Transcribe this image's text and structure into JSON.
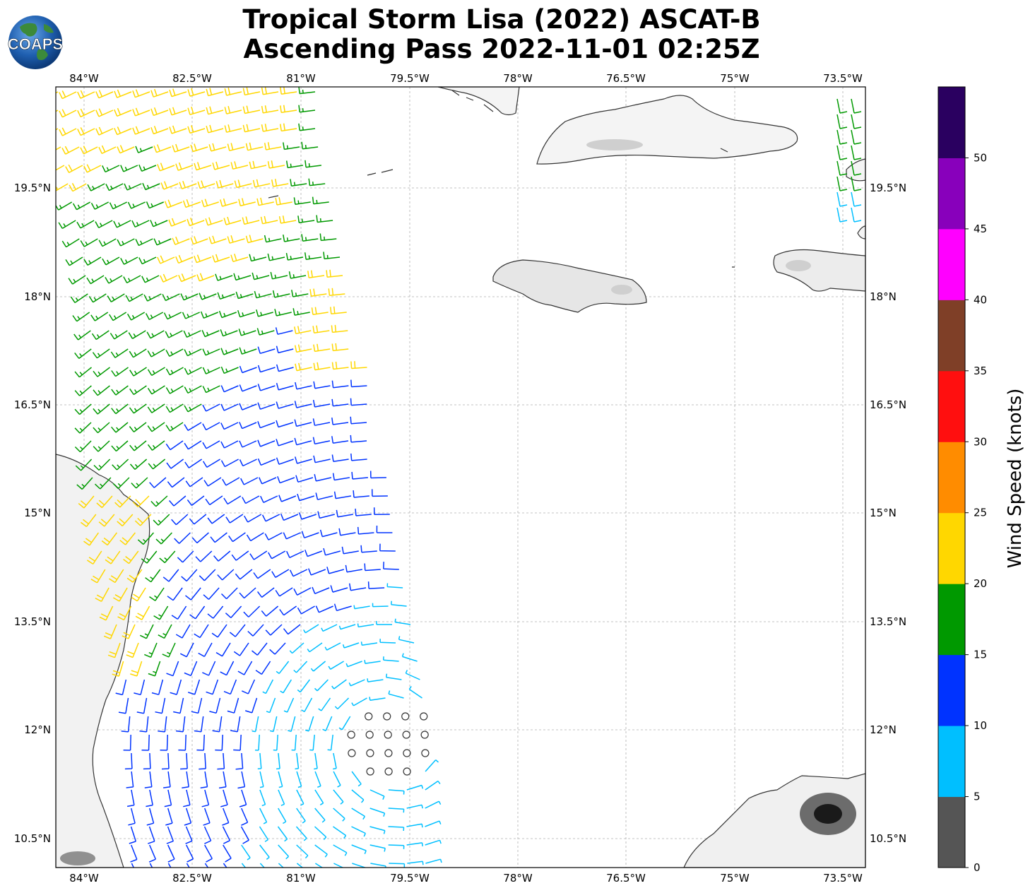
{
  "title_line1": "Tropical Storm Lisa (2022) ASCAT-B",
  "title_line2": "Ascending Pass 2022-11-01 02:25Z",
  "logo_text": "COAPS",
  "lon_labels": [
    "84°W",
    "82.5°W",
    "81°W",
    "79.5°W",
    "78°W",
    "76.5°W",
    "75°W",
    "73.5°W"
  ],
  "lat_labels": [
    "19.5°N",
    "18°N",
    "16.5°N",
    "15°N",
    "13.5°N",
    "12°N",
    "10.5°N"
  ],
  "colorbar": {
    "label": "Wind Speed (knots)",
    "ticks": [
      "0",
      "5",
      "10",
      "15",
      "20",
      "25",
      "30",
      "35",
      "40",
      "45",
      "50"
    ],
    "colors": [
      "#555555",
      "#00bfff",
      "#0033ff",
      "#009900",
      "#ffd700",
      "#ff8c00",
      "#ff0f0f",
      "#7f3f27",
      "#ff00ff",
      "#8800bb",
      "#2a0060"
    ]
  }
}
